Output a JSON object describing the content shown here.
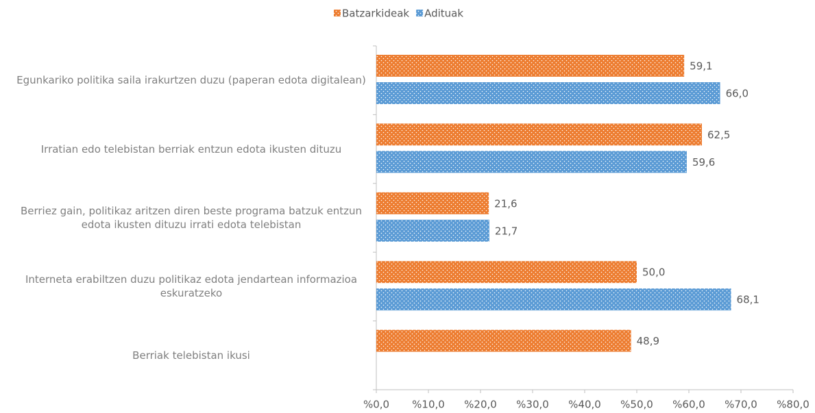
{
  "chart_data": {
    "type": "bar",
    "orientation": "horizontal",
    "categories": [
      "Egunkariko politika saila irakurtzen duzu (paperan edota digitalean)",
      "Irratian edo telebistan berriak entzun edota ikusten dituzu",
      "Berriez gain, politikaz aritzen diren beste programa batzuk entzun edota ikusten dituzu irrati edota telebistan",
      "Interneta erabiltzen duzu politikaz edota jendartean informazioa eskuratzeko",
      "Berriak telebistan ikusi"
    ],
    "series": [
      {
        "name": "Batzarkideak",
        "color": "#ed7d31",
        "values": [
          59.1,
          62.5,
          21.6,
          50.0,
          48.9
        ],
        "value_labels": [
          "59,1",
          "62,5",
          "21,6",
          "50,0",
          "48,9"
        ]
      },
      {
        "name": "Adituak",
        "color": "#5b9bd5",
        "values": [
          66.0,
          59.6,
          21.7,
          68.1,
          null
        ],
        "value_labels": [
          "66,0",
          "59,6",
          "21,7",
          "68,1",
          null
        ]
      }
    ],
    "xlim": [
      0,
      80
    ],
    "xticks": [
      {
        "value": 0,
        "label": "%0,0"
      },
      {
        "value": 10,
        "label": "%10,0"
      },
      {
        "value": 20,
        "label": "%20,0"
      },
      {
        "value": 30,
        "label": "%30,0"
      },
      {
        "value": 40,
        "label": "%40,0"
      },
      {
        "value": 50,
        "label": "%50,0"
      },
      {
        "value": 60,
        "label": "%60,0"
      },
      {
        "value": 70,
        "label": "%70,0"
      },
      {
        "value": 80,
        "label": "%80,0"
      }
    ],
    "legend": "top"
  }
}
